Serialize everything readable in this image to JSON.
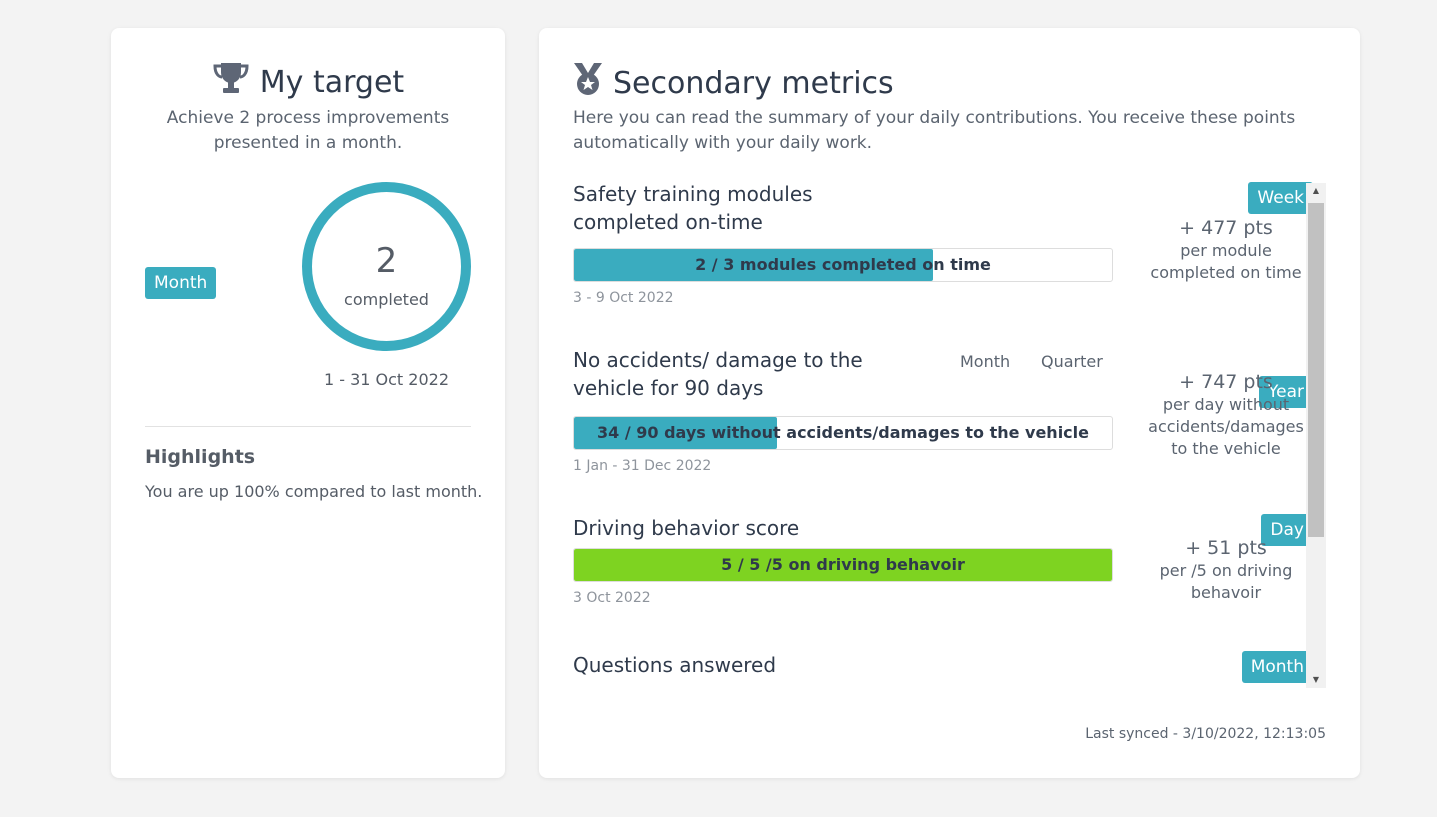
{
  "target": {
    "title": "My target",
    "description": "Achieve 2 process improvements presented in a month.",
    "period_badge": "Month",
    "value": "2",
    "value_label": "completed",
    "period": "1 - 31 Oct 2022",
    "highlights_title": "Highlights",
    "highlights_text": "You are up 100% compared to last month.",
    "accent_color": "#3aacbf"
  },
  "metrics": {
    "title": "Secondary metrics",
    "description": "Here you can read the summary of your daily contributions. You receive these points automatically with your daily work.",
    "items": [
      {
        "name": "Safety training modules completed on-time",
        "period_badge": "Week",
        "progress_text": "2 / 3 modules completed on time",
        "progress": 0.667,
        "bar_color": "#3aacbf",
        "dates": "3 - 9 Oct 2022",
        "points": "+ 477 pts",
        "points_desc": "per module completed on time"
      },
      {
        "name": "No accidents/ damage to the vehicle for 90 days",
        "period_options": [
          "Month",
          "Quarter"
        ],
        "period_badge": "Year",
        "progress_text": "34 / 90 days without accidents/damages to the vehicle",
        "progress": 0.378,
        "bar_color": "#3aacbf",
        "dates": "1 Jan - 31 Dec 2022",
        "points": "+ 747 pts",
        "points_desc": "per day without accidents/damages to the vehicle"
      },
      {
        "name": "Driving behavior score",
        "period_badge": "Day",
        "progress_text": "5 / 5 /5 on driving behavoir",
        "progress": 1.0,
        "bar_color": "#7ed321",
        "dates": "3 Oct 2022",
        "points": "+ 51 pts",
        "points_desc": "per /5 on driving behavoir"
      },
      {
        "name": "Questions answered",
        "period_badge": "Month"
      }
    ],
    "last_synced": "Last synced - 3/10/2022, 12:13:05"
  }
}
